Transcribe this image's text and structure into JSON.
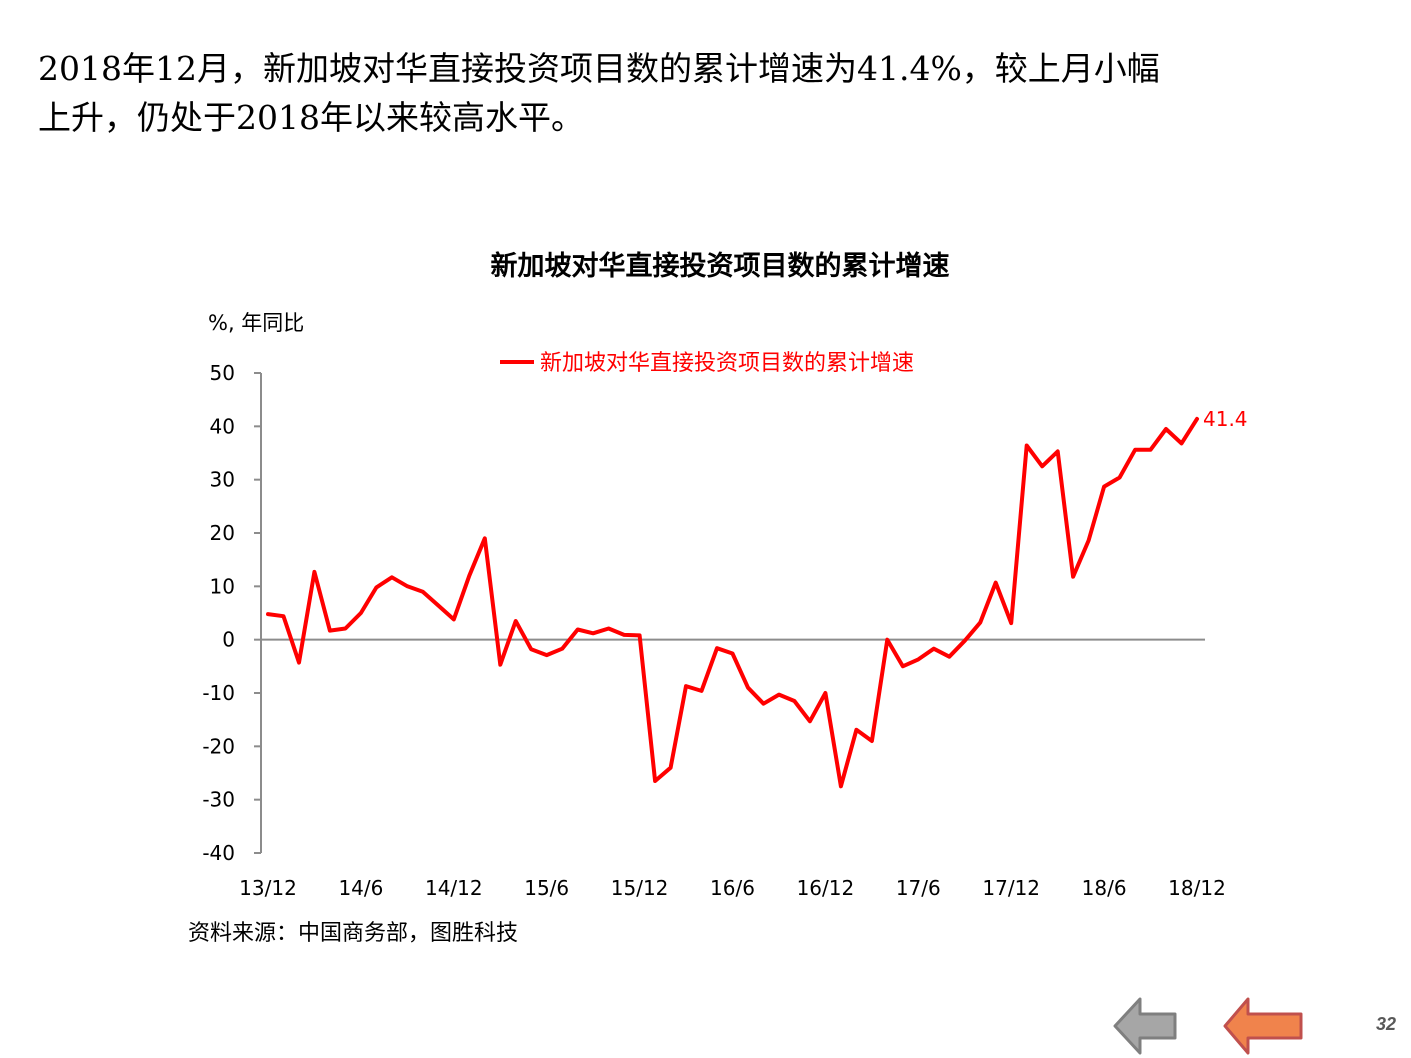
{
  "headline": {
    "line1": "2018年12月，新加坡对华直接投资项目数的累计增速为41.4%，较上月小幅",
    "line2": "上升，仍处于2018年以来较高水平。"
  },
  "footer": {
    "source": "资料来源：中国商务部，图胜科技",
    "page_number": "32",
    "nav_icons": [
      "back-arrow-icon",
      "forward-arrow-icon"
    ]
  },
  "chart_data": {
    "type": "line",
    "title": "新加坡对华直接投资项目数的累计增速",
    "ylabel": "%, 年同比",
    "xlabel": "",
    "ylim": [
      -40,
      50
    ],
    "yticks": [
      50,
      40,
      30,
      20,
      10,
      0,
      -10,
      -20,
      -30,
      -40
    ],
    "xtick_labels": [
      "13/12",
      "14/6",
      "14/12",
      "15/6",
      "15/12",
      "16/6",
      "16/12",
      "17/6",
      "17/12",
      "18/6",
      "18/12"
    ],
    "grid": false,
    "legend": "top-center",
    "series": [
      {
        "name": "新加坡对华直接投资项目数的累计增速",
        "color": "#ff0000",
        "end_label": "41.4",
        "values": [
          4.8,
          4.4,
          -4.3,
          12.7,
          1.7,
          2.1,
          5.0,
          9.8,
          11.7,
          10.0,
          9.0,
          6.4,
          3.8,
          12.0,
          19.0,
          -4.7,
          3.5,
          -1.8,
          -2.9,
          -1.7,
          1.9,
          1.2,
          2.1,
          0.9,
          0.8,
          -26.5,
          -24.0,
          -8.7,
          -9.6,
          -1.6,
          -2.6,
          -9.0,
          -12.0,
          -10.3,
          -11.5,
          -15.3,
          -10.0,
          -27.5,
          -16.9,
          -19.0,
          0.0,
          -5.0,
          -3.7,
          -1.7,
          -3.2,
          -0.2,
          3.2,
          10.7,
          3.1,
          36.4,
          32.5,
          35.3,
          11.8,
          18.6,
          28.7,
          30.4,
          35.6,
          35.6,
          39.5,
          36.8,
          41.4
        ]
      }
    ]
  }
}
